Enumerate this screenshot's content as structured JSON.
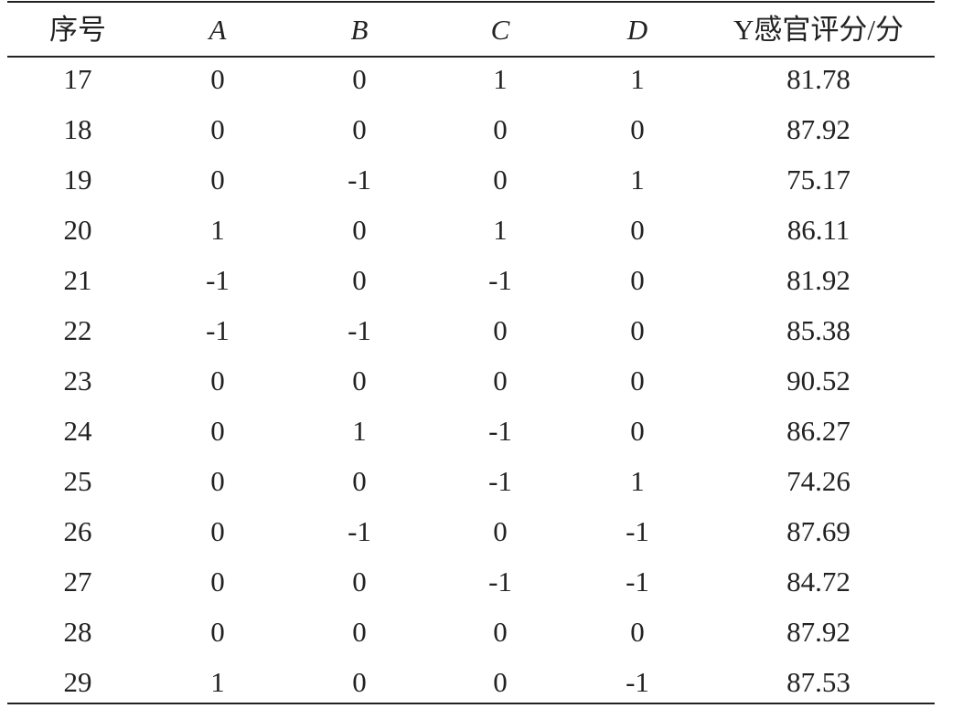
{
  "table": {
    "header": [
      "序号",
      "A",
      "B",
      "C",
      "D",
      "Y感官评分/分"
    ],
    "rows": [
      [
        "17",
        "0",
        "0",
        "1",
        "1",
        "81.78"
      ],
      [
        "18",
        "0",
        "0",
        "0",
        "0",
        "87.92"
      ],
      [
        "19",
        "0",
        "-1",
        "0",
        "1",
        "75.17"
      ],
      [
        "20",
        "1",
        "0",
        "1",
        "0",
        "86.11"
      ],
      [
        "21",
        "-1",
        "0",
        "-1",
        "0",
        "81.92"
      ],
      [
        "22",
        "-1",
        "-1",
        "0",
        "0",
        "85.38"
      ],
      [
        "23",
        "0",
        "0",
        "0",
        "0",
        "90.52"
      ],
      [
        "24",
        "0",
        "1",
        "-1",
        "0",
        "86.27"
      ],
      [
        "25",
        "0",
        "0",
        "-1",
        "1",
        "74.26"
      ],
      [
        "26",
        "0",
        "-1",
        "0",
        "-1",
        "87.69"
      ],
      [
        "27",
        "0",
        "0",
        "-1",
        "-1",
        "84.72"
      ],
      [
        "28",
        "0",
        "0",
        "0",
        "0",
        "87.92"
      ],
      [
        "29",
        "1",
        "0",
        "0",
        "-1",
        "87.53"
      ]
    ]
  }
}
